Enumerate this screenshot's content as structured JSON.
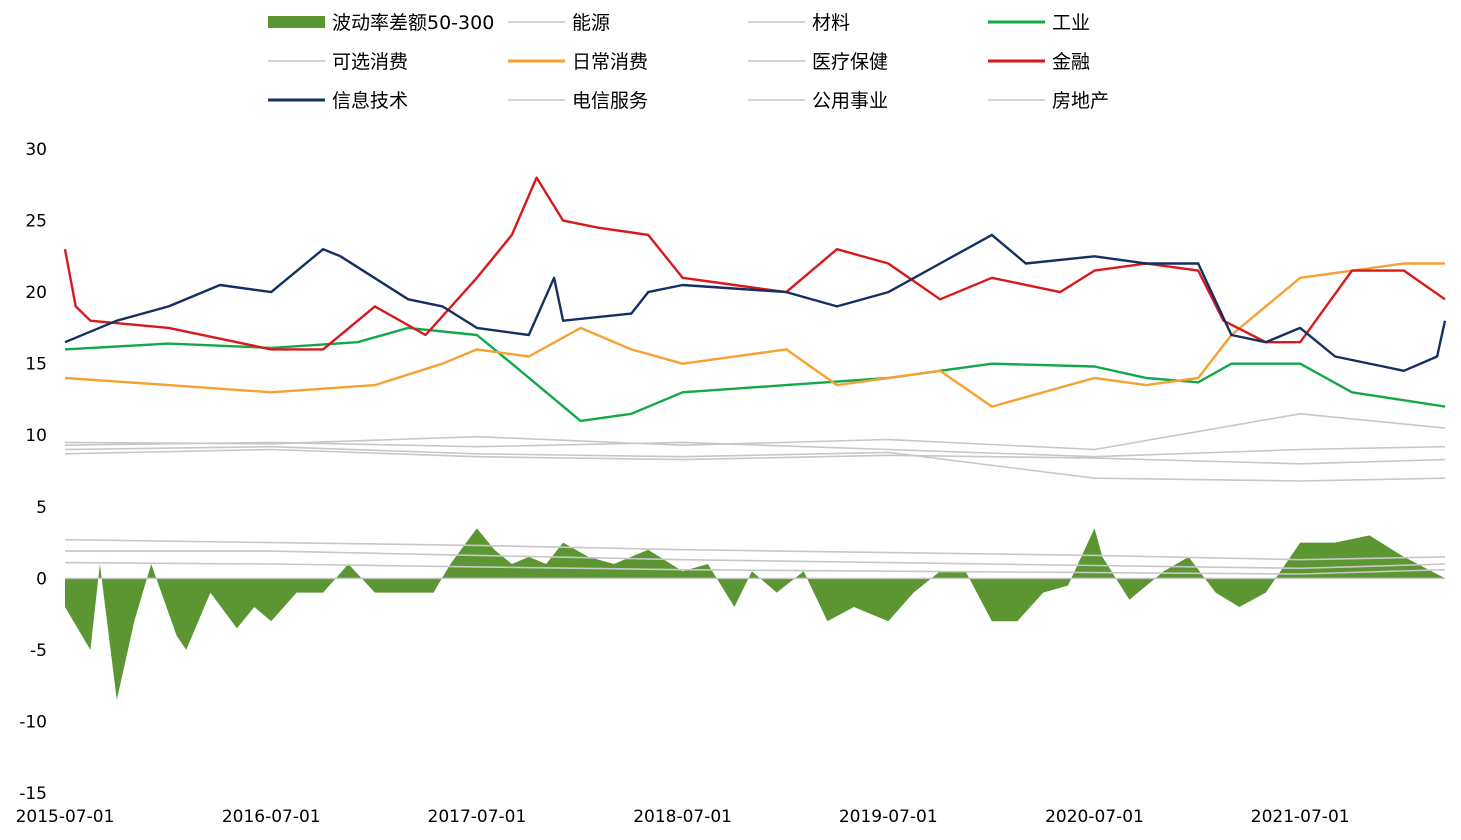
{
  "chart_data": {
    "type": "line",
    "title": "",
    "xlabel": "",
    "ylabel": "",
    "ylim": [
      -15,
      30
    ],
    "yticks": [
      30,
      25,
      20,
      15,
      10,
      5,
      0,
      -5,
      -10,
      -15
    ],
    "xlim": [
      "2015-07-01",
      "2022-03-15"
    ],
    "xticks": [
      "2015-07-01",
      "2016-07-01",
      "2017-07-01",
      "2018-07-01",
      "2019-07-01",
      "2020-07-01",
      "2021-07-01"
    ],
    "grid": false,
    "legend_position": "top",
    "series": [
      {
        "name": "波动率差额50-300",
        "kind": "area",
        "color": "#5b9632",
        "x": [
          "2015-07-01",
          "2015-08-15",
          "2015-09-01",
          "2015-10-01",
          "2015-11-01",
          "2015-12-01",
          "2016-01-15",
          "2016-02-01",
          "2016-03-15",
          "2016-05-01",
          "2016-06-01",
          "2016-07-01",
          "2016-08-15",
          "2016-10-01",
          "2016-11-15",
          "2017-01-01",
          "2017-03-01",
          "2017-04-15",
          "2017-05-15",
          "2017-07-01",
          "2017-08-01",
          "2017-09-01",
          "2017-10-01",
          "2017-11-01",
          "2017-12-01",
          "2018-01-15",
          "2018-03-01",
          "2018-05-01",
          "2018-07-01",
          "2018-08-15",
          "2018-10-01",
          "2018-11-01",
          "2018-12-15",
          "2019-02-01",
          "2019-03-15",
          "2019-05-01",
          "2019-07-01",
          "2019-08-15",
          "2019-10-01",
          "2019-11-15",
          "2020-01-01",
          "2020-02-15",
          "2020-04-01",
          "2020-05-15",
          "2020-07-01",
          "2020-07-15",
          "2020-09-01",
          "2020-11-01",
          "2020-12-15",
          "2021-02-01",
          "2021-03-15",
          "2021-05-01",
          "2021-07-01",
          "2021-09-01",
          "2021-11-01",
          "2022-01-01",
          "2022-03-15"
        ],
        "values": [
          -2,
          -5,
          1,
          -8.5,
          -3,
          1,
          -4,
          -5,
          -1,
          -3.5,
          -2,
          -3,
          -1,
          -1,
          1,
          -1,
          -1,
          -1,
          1,
          3.5,
          2,
          1,
          1.5,
          1,
          2.5,
          1.5,
          1,
          2,
          0.5,
          1,
          -2,
          0.5,
          -1,
          0.5,
          -3,
          -2,
          -3,
          -1,
          0.5,
          0.5,
          -3,
          -3,
          -1,
          -0.5,
          3.5,
          1.5,
          -1.5,
          0.5,
          1.5,
          -1,
          -2,
          -1,
          2.5,
          2.5,
          3,
          1.5,
          0
        ]
      },
      {
        "name": "能源",
        "color": "#c7c7c7",
        "x": [
          "2015-07-01",
          "2016-07-01",
          "2017-07-01",
          "2018-07-01",
          "2019-07-01",
          "2020-07-01",
          "2021-07-01",
          "2022-03-15"
        ],
        "values": [
          9.3,
          9.5,
          9.2,
          9.5,
          9.0,
          8.5,
          9.0,
          9.2
        ]
      },
      {
        "name": "材料",
        "color": "#c7c7c7",
        "x": [
          "2015-07-01",
          "2016-07-01",
          "2017-07-01",
          "2018-07-01",
          "2019-07-01",
          "2020-07-01",
          "2021-07-01",
          "2022-03-15"
        ],
        "values": [
          8.7,
          9.0,
          8.5,
          8.3,
          8.6,
          8.4,
          8.0,
          8.3
        ]
      },
      {
        "name": "工业",
        "color": "#12a84a",
        "x": [
          "2015-07-01",
          "2016-01-01",
          "2016-07-01",
          "2016-12-01",
          "2017-03-01",
          "2017-07-01",
          "2017-09-01",
          "2018-01-01",
          "2018-04-01",
          "2018-07-01",
          "2019-01-01",
          "2019-07-01",
          "2019-10-01",
          "2020-01-01",
          "2020-07-01",
          "2020-10-01",
          "2021-01-01",
          "2021-03-01",
          "2021-07-01",
          "2021-10-01",
          "2022-03-15"
        ],
        "values": [
          16.0,
          16.4,
          16.1,
          16.5,
          17.5,
          17.0,
          15.0,
          11.0,
          11.5,
          13.0,
          13.5,
          14.0,
          14.5,
          15.0,
          14.8,
          14.0,
          13.7,
          15.0,
          15.0,
          13.0,
          12.0
        ]
      },
      {
        "name": "可选消费",
        "color": "#c7c7c7",
        "x": [
          "2015-07-01",
          "2016-07-01",
          "2017-07-01",
          "2018-07-01",
          "2019-07-01",
          "2020-07-01",
          "2021-07-01",
          "2022-03-15"
        ],
        "values": [
          9.0,
          9.2,
          8.7,
          8.5,
          8.8,
          7.0,
          6.8,
          7.0
        ]
      },
      {
        "name": "日常消费",
        "color": "#f7a132",
        "x": [
          "2015-07-01",
          "2016-01-01",
          "2016-07-01",
          "2017-01-01",
          "2017-05-01",
          "2017-07-01",
          "2017-10-01",
          "2018-01-01",
          "2018-04-01",
          "2018-07-01",
          "2019-01-01",
          "2019-04-01",
          "2019-07-01",
          "2019-10-01",
          "2020-01-01",
          "2020-07-01",
          "2020-10-01",
          "2021-01-01",
          "2021-03-01",
          "2021-07-01",
          "2022-01-01",
          "2022-03-15"
        ],
        "values": [
          14.0,
          13.5,
          13.0,
          13.5,
          15.0,
          16.0,
          15.5,
          17.5,
          16.0,
          15.0,
          16.0,
          13.5,
          14.0,
          14.5,
          12.0,
          14.0,
          13.5,
          14.0,
          17.0,
          21.0,
          22.0,
          22.0
        ]
      },
      {
        "name": "医疗保健",
        "color": "#c7c7c7",
        "x": [
          "2015-07-01",
          "2016-07-01",
          "2017-07-01",
          "2018-07-01",
          "2019-07-01",
          "2020-07-01",
          "2021-07-01",
          "2022-03-15"
        ],
        "values": [
          9.5,
          9.4,
          9.9,
          9.3,
          9.7,
          9.0,
          11.5,
          10.5
        ]
      },
      {
        "name": "金融",
        "color": "#d7191c",
        "x": [
          "2015-07-01",
          "2015-07-20",
          "2015-08-15",
          "2016-01-01",
          "2016-07-01",
          "2016-10-01",
          "2017-01-01",
          "2017-04-01",
          "2017-07-01",
          "2017-09-01",
          "2017-10-15",
          "2017-12-01",
          "2018-02-01",
          "2018-05-01",
          "2018-07-01",
          "2018-10-01",
          "2019-01-01",
          "2019-04-01",
          "2019-07-01",
          "2019-10-01",
          "2020-01-01",
          "2020-05-01",
          "2020-07-01",
          "2020-10-01",
          "2021-01-01",
          "2021-02-15",
          "2021-05-01",
          "2021-07-01",
          "2021-10-01",
          "2022-01-01",
          "2022-03-15"
        ],
        "values": [
          23.0,
          19.0,
          18.0,
          17.5,
          16.0,
          16.0,
          19.0,
          17.0,
          21.0,
          24.0,
          28.0,
          25.0,
          24.5,
          24.0,
          21.0,
          20.5,
          20.0,
          23.0,
          22.0,
          19.5,
          21.0,
          20.0,
          21.5,
          22.0,
          21.5,
          18.0,
          16.5,
          16.5,
          21.5,
          21.5,
          19.5
        ]
      },
      {
        "name": "信息技术",
        "color": "#142f63",
        "x": [
          "2015-07-01",
          "2015-10-01",
          "2016-01-01",
          "2016-04-01",
          "2016-07-01",
          "2016-10-01",
          "2016-11-01",
          "2017-03-01",
          "2017-05-01",
          "2017-07-01",
          "2017-10-01",
          "2017-11-15",
          "2017-12-01",
          "2018-04-01",
          "2018-05-01",
          "2018-07-01",
          "2019-01-01",
          "2019-04-01",
          "2019-07-01",
          "2019-10-01",
          "2020-01-01",
          "2020-03-01",
          "2020-07-01",
          "2020-10-01",
          "2021-01-01",
          "2021-03-01",
          "2021-05-01",
          "2021-07-01",
          "2021-09-01",
          "2022-01-01",
          "2022-03-01",
          "2022-03-15"
        ],
        "values": [
          16.5,
          18.0,
          19.0,
          20.5,
          20.0,
          23.0,
          22.5,
          19.5,
          19.0,
          17.5,
          17.0,
          21.0,
          18.0,
          18.5,
          20.0,
          20.5,
          20.0,
          19.0,
          20.0,
          22.0,
          24.0,
          22.0,
          22.5,
          22.0,
          22.0,
          17.0,
          16.5,
          17.5,
          15.5,
          14.5,
          15.5,
          18.0
        ]
      },
      {
        "name": "电信服务",
        "color": "#c7c7c7",
        "x": [
          "2015-07-01",
          "2016-07-01",
          "2017-07-01",
          "2018-07-01",
          "2019-07-01",
          "2020-07-01",
          "2021-07-01",
          "2022-03-15"
        ],
        "values": [
          2.7,
          2.5,
          2.3,
          2.0,
          1.8,
          1.6,
          1.3,
          1.5
        ]
      },
      {
        "name": "公用事业",
        "color": "#c7c7c7",
        "x": [
          "2015-07-01",
          "2016-07-01",
          "2017-07-01",
          "2018-07-01",
          "2019-07-01",
          "2020-07-01",
          "2021-07-01",
          "2022-03-15"
        ],
        "values": [
          1.9,
          1.9,
          1.6,
          1.3,
          1.1,
          0.9,
          0.7,
          1.0
        ]
      },
      {
        "name": "房地产",
        "color": "#c7c7c7",
        "x": [
          "2015-07-01",
          "2016-07-01",
          "2017-07-01",
          "2018-07-01",
          "2019-07-01",
          "2020-07-01",
          "2021-07-01",
          "2022-03-15"
        ],
        "values": [
          1.1,
          1.0,
          0.8,
          0.6,
          0.5,
          0.4,
          0.3,
          0.6
        ]
      }
    ]
  }
}
